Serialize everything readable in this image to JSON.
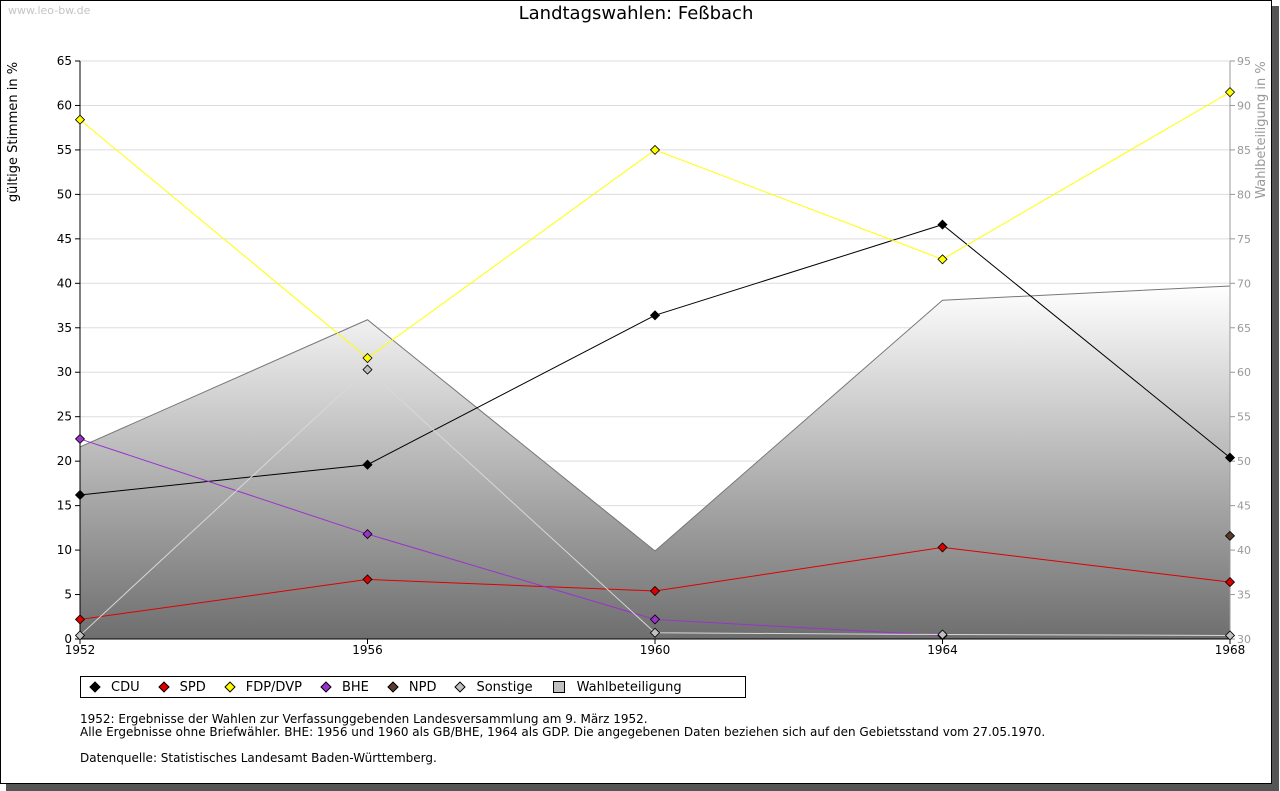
{
  "watermark": "www.leo-bw.de",
  "chart_data": {
    "type": "line",
    "title": "Landtagswahlen: Feßbach",
    "ylabel": "gültige Stimmen in %",
    "y2label": "Wahlbeteiligung in %",
    "ylim": [
      0,
      65
    ],
    "y2lim": [
      30,
      95
    ],
    "y_ticks": [
      0,
      5,
      10,
      15,
      20,
      25,
      30,
      35,
      40,
      45,
      50,
      55,
      60,
      65
    ],
    "y2_ticks": [
      30,
      35,
      40,
      45,
      50,
      55,
      60,
      65,
      70,
      75,
      80,
      85,
      90,
      95
    ],
    "categories": [
      "1952",
      "1956",
      "1960",
      "1964",
      "1968"
    ],
    "grid": true,
    "legend_position": "bottom-left",
    "series": [
      {
        "name": "CDU",
        "color": "#000000",
        "values": [
          16.2,
          19.6,
          36.4,
          46.6,
          20.4
        ]
      },
      {
        "name": "SPD",
        "color": "#dd0000",
        "values": [
          2.2,
          6.7,
          5.4,
          10.3,
          6.4
        ]
      },
      {
        "name": "FDP/DVP",
        "color": "#ffff00",
        "values": [
          58.4,
          31.6,
          55.0,
          42.7,
          61.5
        ]
      },
      {
        "name": "BHE",
        "color": "#9933cc",
        "values": [
          22.5,
          11.8,
          2.2,
          0.4,
          null
        ]
      },
      {
        "name": "NPD",
        "color": "#5a3a2a",
        "values": [
          null,
          null,
          null,
          null,
          11.6
        ]
      },
      {
        "name": "Sonstige",
        "color": "#c0c0c0",
        "values": [
          0.4,
          30.3,
          0.7,
          0.5,
          0.4
        ]
      }
    ],
    "area_series": {
      "name": "Wahlbeteiligung",
      "axis": "right",
      "values": [
        51.6,
        65.9,
        39.9,
        68.1,
        69.7
      ]
    }
  },
  "legend": [
    {
      "label": "CDU",
      "color": "#000000",
      "shape": "diamond"
    },
    {
      "label": "SPD",
      "color": "#dd0000",
      "shape": "diamond"
    },
    {
      "label": "FDP/DVP",
      "color": "#ffff00",
      "shape": "diamond"
    },
    {
      "label": "BHE",
      "color": "#9933cc",
      "shape": "diamond"
    },
    {
      "label": "NPD",
      "color": "#5a3a2a",
      "shape": "diamond"
    },
    {
      "label": "Sonstige",
      "color": "#c0c0c0",
      "shape": "diamond"
    },
    {
      "label": "Wahlbeteiligung",
      "color": "#c0c0c0",
      "shape": "square"
    }
  ],
  "notes": {
    "line1": "1952: Ergebnisse der Wahlen zur Verfassunggebenden Landesversammlung am 9. März 1952.",
    "line2": "Alle Ergebnisse ohne Briefwähler. BHE: 1956 und 1960 als GB/BHE, 1964 als GDP. Die angegebenen Daten beziehen sich auf den Gebietsstand vom 27.05.1970.",
    "line3": "Datenquelle: Statistisches Landesamt Baden-Württemberg."
  }
}
